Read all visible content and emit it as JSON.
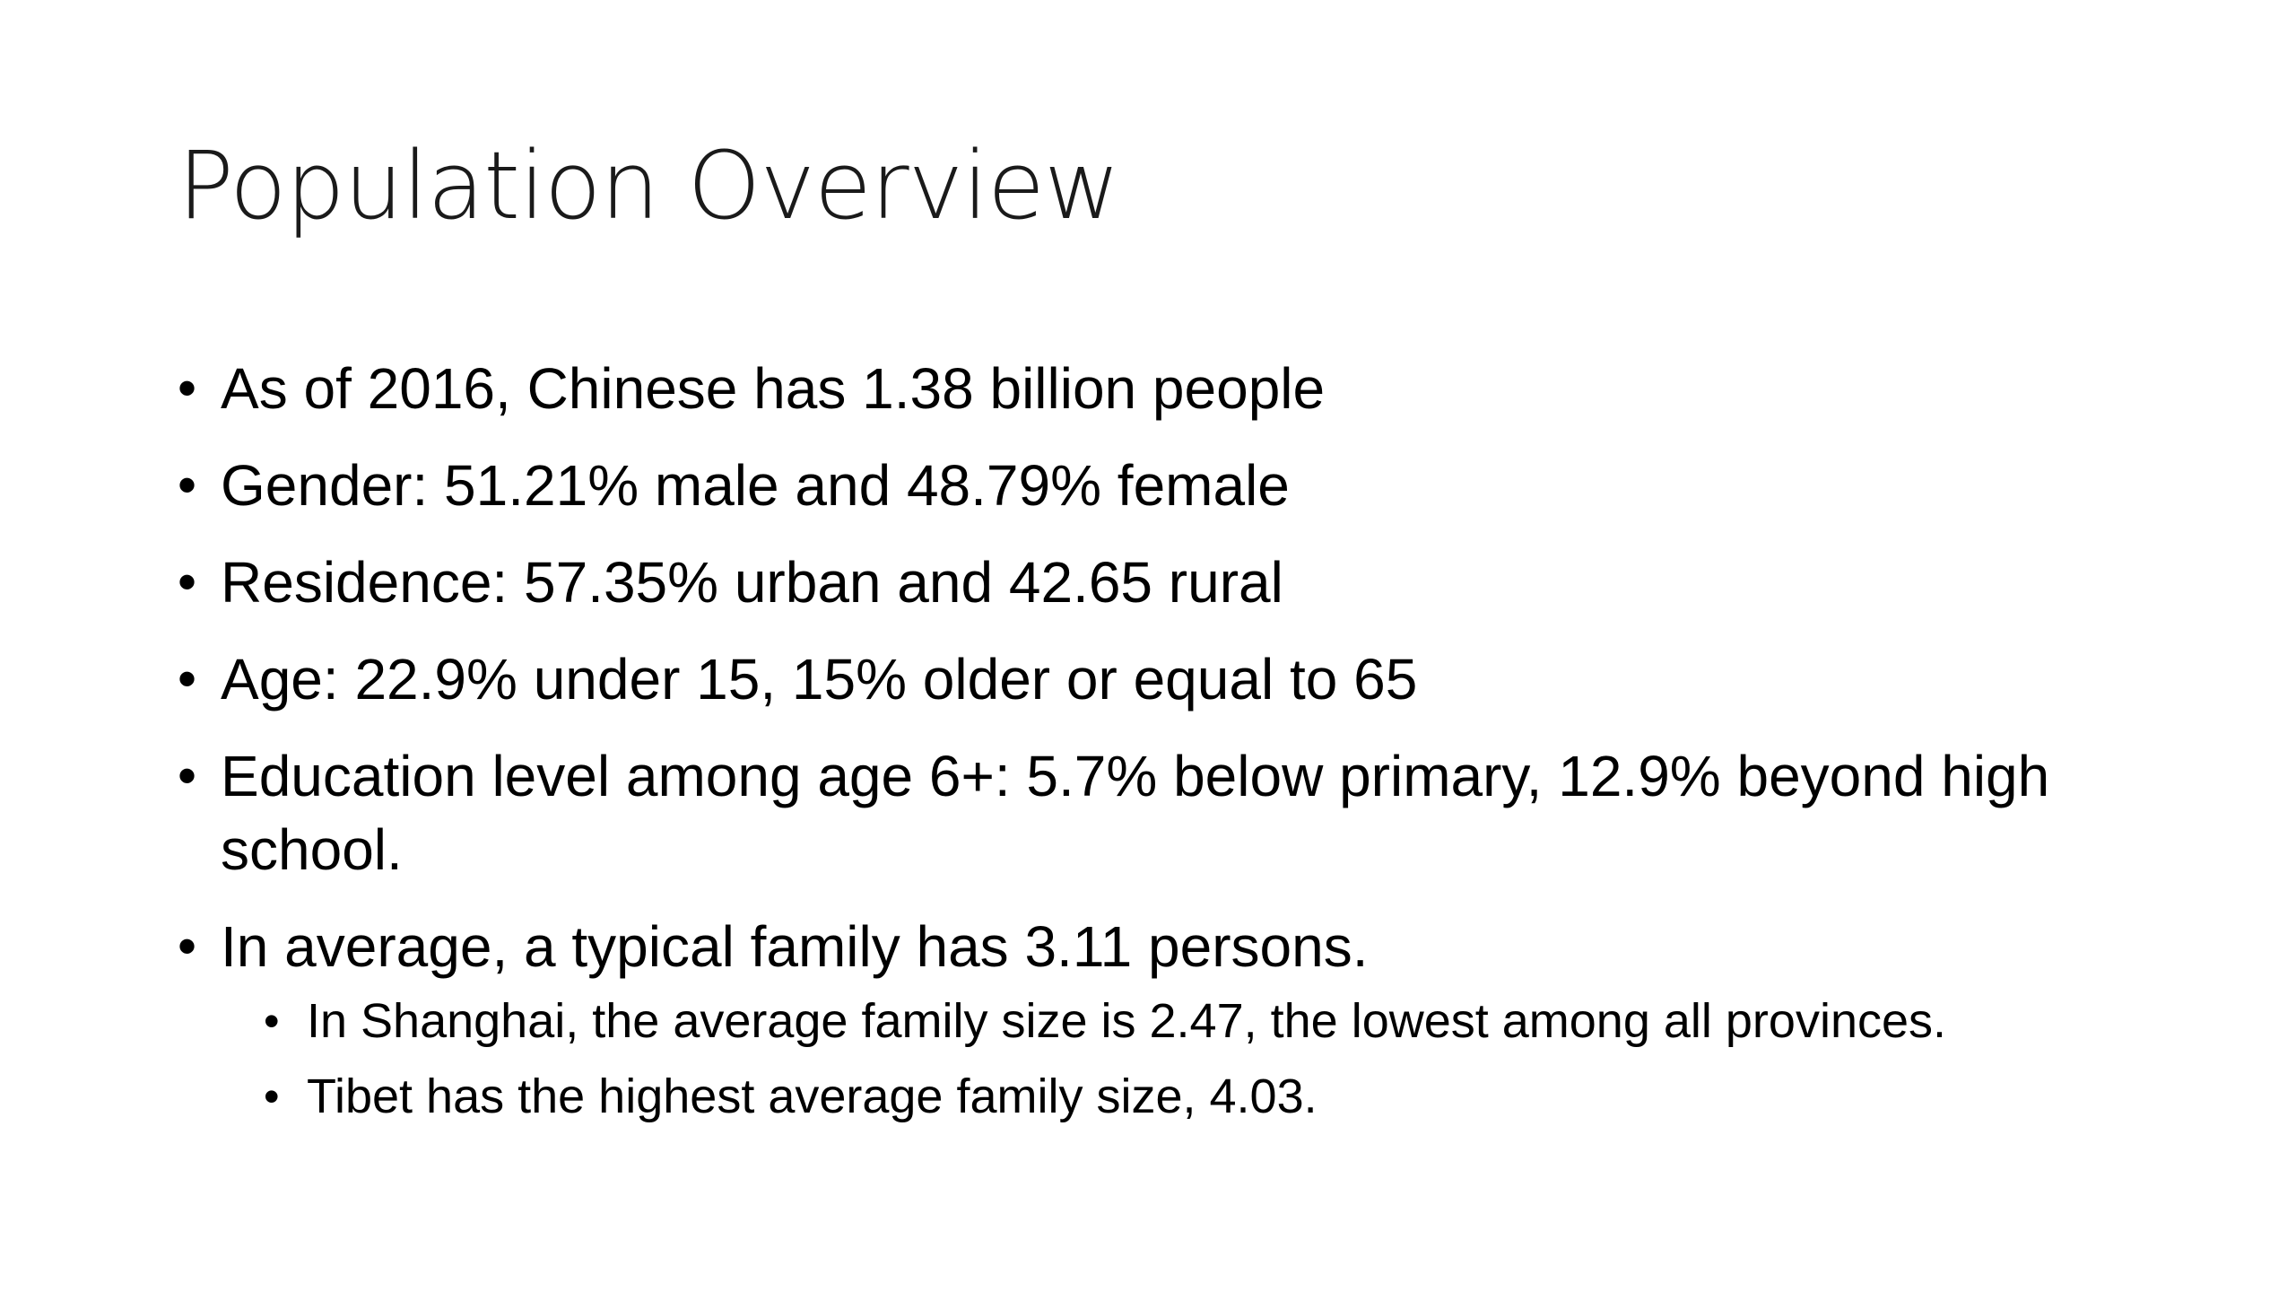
{
  "slide": {
    "title": "Population Overview",
    "bullets": [
      "As of 2016, Chinese has 1.38 billion people",
      "Gender: 51.21% male and 48.79% female",
      "Residence: 57.35% urban and 42.65 rural",
      "Age: 22.9% under 15, 15% older or equal to 65",
      "Education level among age 6+: 5.7% below primary, 12.9% beyond high school.",
      "In average, a typical family has 3.11 persons."
    ],
    "sub_bullets": [
      "In Shanghai, the average family size is 2.47, the lowest among all provinces.",
      "Tibet has the highest average family size, 4.03."
    ]
  }
}
